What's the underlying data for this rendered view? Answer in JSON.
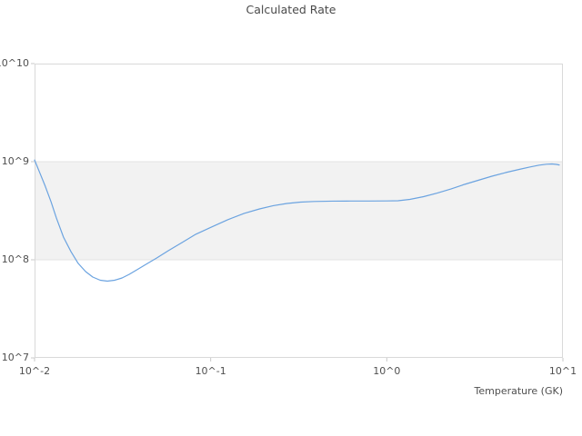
{
  "title": "Calculated Rate",
  "axes": {
    "x": {
      "label": "Temperature (GK)",
      "ticks": [
        "10^-2",
        "10^-1",
        "10^0",
        "10^1"
      ],
      "scale": "log",
      "log_range": [
        -2,
        1
      ]
    },
    "y": {
      "label": "",
      "ticks": [
        "10^10",
        "10^9",
        "10^8",
        "10^7"
      ],
      "scale": "log",
      "log_range": [
        7,
        10
      ]
    }
  },
  "band": {
    "from": 100000000.0,
    "to": 1000000000.0,
    "fill": "#f2f2f2",
    "edge": "#e3e3e3"
  },
  "colors": {
    "line": "#6ba3e0",
    "frame": "#d9d9d9",
    "tick_mark": "#c9c9c9",
    "text": "#4f4f4f",
    "background": "#ffffff"
  },
  "chart_data": {
    "type": "line",
    "title": "Calculated Rate",
    "xlabel": "Temperature (GK)",
    "ylabel": "",
    "x_scale": "log",
    "y_scale": "log",
    "xlim": [
      0.01,
      10
    ],
    "ylim": [
      10000000.0,
      10000000000.0
    ],
    "grid": false,
    "legend": "none",
    "highlight_band_y": [
      100000000.0,
      1000000000.0
    ],
    "series": [
      {
        "name": "calculated-rate",
        "x": [
          0.01,
          0.0107,
          0.0115,
          0.0124,
          0.0133,
          0.0146,
          0.0161,
          0.0177,
          0.0195,
          0.0214,
          0.0236,
          0.0259,
          0.0285,
          0.0314,
          0.0345,
          0.0389,
          0.0438,
          0.0493,
          0.0576,
          0.0688,
          0.0823,
          0.1008,
          0.1249,
          0.1548,
          0.1895,
          0.2266,
          0.2709,
          0.3238,
          0.3872,
          0.4913,
          0.6235,
          0.7912,
          1.004,
          1.158,
          1.352,
          1.617,
          1.933,
          2.312,
          2.763,
          3.303,
          3.95,
          4.722,
          5.645,
          6.513,
          7.337,
          8.07,
          8.67,
          9.2,
          9.53
        ],
        "y": [
          1040000000.0,
          773000000.0,
          562000000.0,
          391000000.0,
          267000000.0,
          170000000.0,
          121000000.0,
          91800000.0,
          75800000.0,
          66700000.0,
          61900000.0,
          60600000.0,
          61900000.0,
          65300000.0,
          71100000.0,
          80800000.0,
          91800000.0,
          104000000.0,
          124000000.0,
          150000000.0,
          182000000.0,
          215000000.0,
          256000000.0,
          297000000.0,
          330000000.0,
          356000000.0,
          375000000.0,
          387000000.0,
          393000000.0,
          396000000.0,
          397000000.0,
          397000000.0,
          398000000.0,
          400000000.0,
          413000000.0,
          440000000.0,
          479000000.0,
          527000000.0,
          587000000.0,
          646000000.0,
          711000000.0,
          774000000.0,
          834000000.0,
          884000000.0,
          922000000.0,
          942000000.0,
          948000000.0,
          938000000.0,
          926000000.0
        ]
      }
    ]
  }
}
